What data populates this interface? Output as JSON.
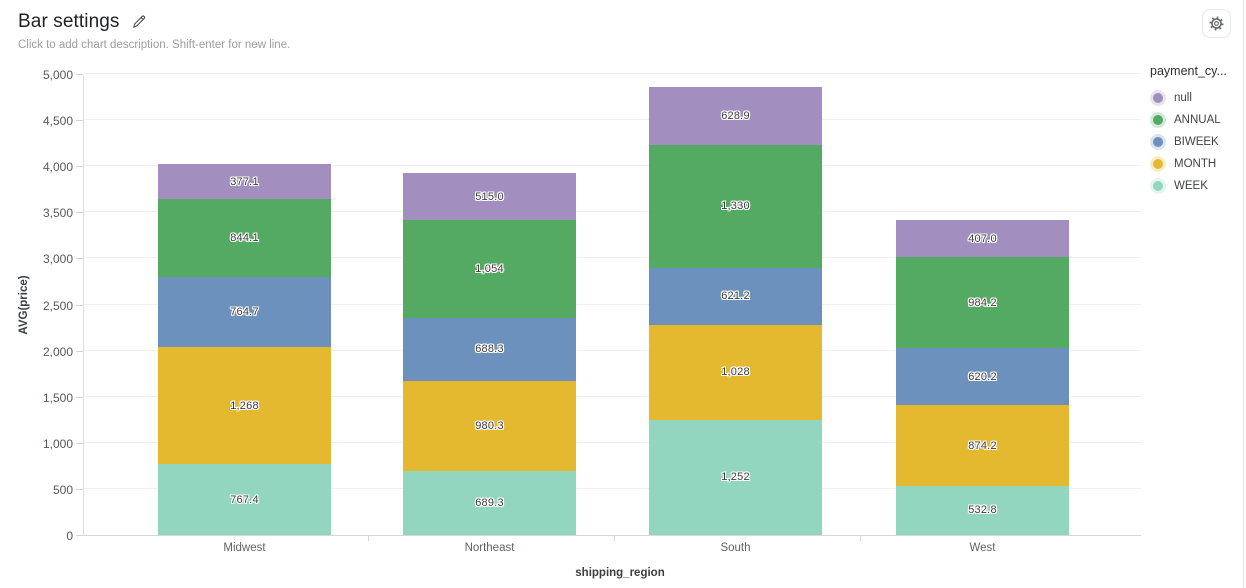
{
  "header": {
    "title": "Bar settings",
    "subtitle": "Click to add chart description. Shift-enter for new line.",
    "edit_icon": "pencil-icon",
    "settings_icon": "gear-icon"
  },
  "legend": {
    "title": "payment_cy...",
    "items": [
      "null",
      "ANNUAL",
      "BIWEEK",
      "MONTH",
      "WEEK"
    ]
  },
  "chart_data": {
    "type": "bar",
    "stacked": true,
    "title": "Bar settings",
    "xlabel": "shipping_region",
    "ylabel": "AVG(price)",
    "ylim": [
      0,
      5000
    ],
    "ytick_step": 500,
    "ytick_labels": [
      "0",
      "500",
      "1,000",
      "1,500",
      "2,000",
      "2,500",
      "3,000",
      "3,500",
      "4,000",
      "4,500",
      "5,000"
    ],
    "grid": true,
    "legend_title": "payment_cy...",
    "legend_position": "right",
    "categories": [
      "Midwest",
      "Northeast",
      "South",
      "West"
    ],
    "series": [
      {
        "name": "WEEK",
        "color": "#93d6c0",
        "values": [
          767.4,
          689.3,
          1252,
          532.8
        ],
        "labels": [
          "767.4",
          "689.3",
          "1,252",
          "532.8"
        ]
      },
      {
        "name": "MONTH",
        "color": "#e4b92f",
        "values": [
          1268,
          980.3,
          1028,
          874.2
        ],
        "labels": [
          "1,268",
          "980.3",
          "1,028",
          "874.2"
        ]
      },
      {
        "name": "BIWEEK",
        "color": "#6c91bd",
        "values": [
          764.7,
          688.3,
          621.2,
          620.2
        ],
        "labels": [
          "764.7",
          "688.3",
          "621.2",
          "620.2"
        ]
      },
      {
        "name": "ANNUAL",
        "color": "#54a963",
        "values": [
          844.1,
          1054,
          1330,
          984.2
        ],
        "labels": [
          "844.1",
          "1,054",
          "1,330",
          "984.2"
        ]
      },
      {
        "name": "null",
        "color": "#a28fbf",
        "values": [
          377.1,
          515.0,
          628.9,
          407.0
        ],
        "labels": [
          "377.1",
          "515.0",
          "628.9",
          "407.0"
        ]
      }
    ]
  }
}
